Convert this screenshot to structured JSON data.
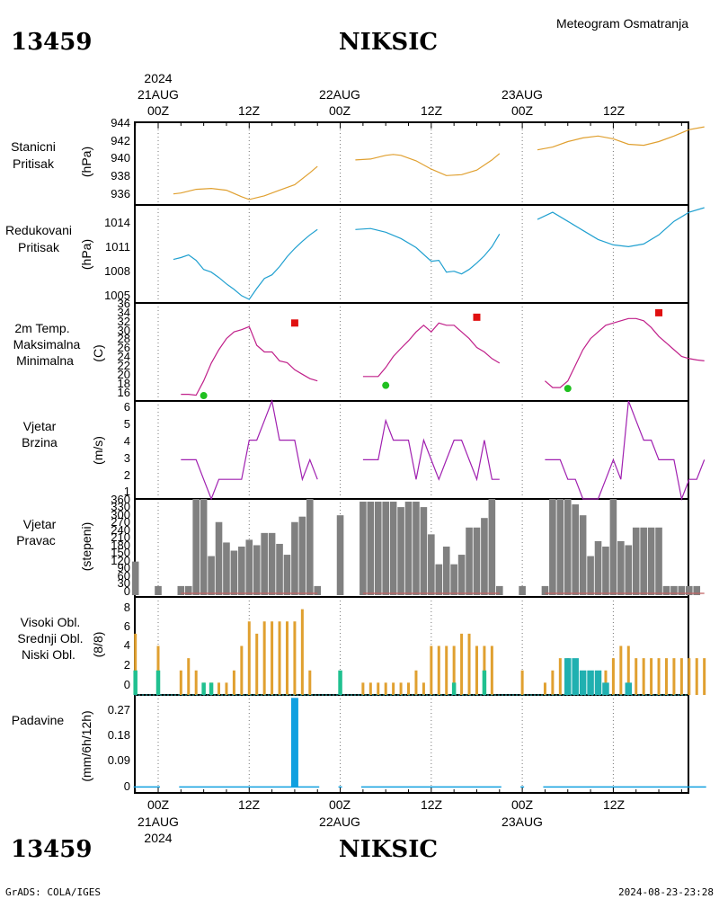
{
  "header": {
    "station_id": "13459",
    "station_name": "NIKSIC",
    "product": "Meteogram Osmatranja"
  },
  "footer": {
    "station_id": "13459",
    "station_name": "NIKSIC",
    "credit": "GrADS: COLA/IGES",
    "timestamp": "2024-08-23-23:28"
  },
  "time_axis": {
    "top_year": "2024",
    "bottom_year": "2024",
    "day_labels": [
      "21AUG",
      "22AUG",
      "23AUG"
    ],
    "hour_labels": [
      "00Z",
      "12Z",
      "00Z",
      "12Z",
      "00Z",
      "12Z"
    ]
  },
  "colors": {
    "pressure": "#e0a030",
    "reduced": "#20a0d0",
    "temp": "#c0208a",
    "tmax": "#e01010",
    "tmin": "#20c020",
    "wind": "#a020b0",
    "winddir": "#808080",
    "high_cloud": "#20b0b0",
    "mid_cloud": "#20c090",
    "low_cloud": "#e0a030",
    "precip": "#10a0e0"
  },
  "panels": {
    "stanicni": {
      "label1": "Stanicni",
      "label2": "Pritisak",
      "unit": "(hPa)",
      "ticks": [
        "944",
        "942",
        "940",
        "938",
        "936"
      ]
    },
    "redukovani": {
      "label1": "Redukovani",
      "label2": "Pritisak",
      "unit": "(hPa)",
      "ticks": [
        "1014",
        "1011",
        "1008",
        "1005"
      ]
    },
    "temp": {
      "label1": "2m Temp.",
      "label2": "Maksimalna",
      "label3": "Minimalna",
      "unit": "(C)",
      "ticks": [
        "36",
        "34",
        "32",
        "30",
        "28",
        "26",
        "24",
        "22",
        "20",
        "18",
        "16"
      ]
    },
    "brzina": {
      "label1": "Vjetar",
      "label2": "Brzina",
      "unit": "(m/s)",
      "ticks": [
        "6",
        "5",
        "4",
        "3",
        "2",
        "1"
      ]
    },
    "pravac": {
      "label1": "Vjetar",
      "label2": "Pravac",
      "unit": "(stepeni)",
      "ticks": [
        "360",
        "300",
        "240",
        "180",
        "120",
        "60",
        "0",
        "330",
        "270",
        "210",
        "150",
        "90",
        "30"
      ]
    },
    "oblaci": {
      "label1": "Visoki Obl.",
      "label2": "Srednji Obl.",
      "label3": "Niski Obl.",
      "unit": "(8/8)",
      "ticks": [
        "8",
        "6",
        "4",
        "2",
        "0"
      ]
    },
    "padavine": {
      "label1": "Padavine",
      "unit": "(mm/6h/12h)",
      "ticks": [
        "0.27",
        "0.18",
        "0.09",
        "0"
      ]
    }
  },
  "chart_data": [
    {
      "type": "line",
      "name": "stanicni_pritisak",
      "title": "Stanicni Pritisak",
      "ylabel": "(hPa)",
      "ylim": [
        935,
        944
      ],
      "x_unit": "hours since 21AUG 00Z",
      "segments": [
        {
          "x": [
            2,
            3,
            5,
            7,
            9,
            11,
            12,
            14,
            16,
            18,
            20,
            21
          ],
          "y": [
            936.2,
            936.3,
            936.7,
            936.8,
            936.6,
            935.9,
            935.6,
            936.0,
            936.6,
            937.2,
            938.5,
            939.2
          ]
        },
        {
          "x": [
            26,
            28,
            30,
            31,
            32,
            34,
            36,
            38,
            40,
            42,
            44,
            45
          ],
          "y": [
            939.9,
            940.0,
            940.4,
            940.5,
            940.4,
            939.8,
            938.9,
            938.2,
            938.3,
            938.8,
            939.9,
            940.6
          ]
        },
        {
          "x": [
            50,
            52,
            54,
            56,
            58,
            60,
            62,
            64,
            66,
            68,
            70,
            72
          ],
          "y": [
            941.0,
            941.3,
            941.9,
            942.3,
            942.5,
            942.2,
            941.6,
            941.5,
            941.9,
            942.5,
            943.2,
            943.5
          ]
        }
      ]
    },
    {
      "type": "line",
      "name": "redukovani_pritisak",
      "title": "Redukovani Pritisak",
      "ylabel": "(hPa)",
      "ylim": [
        1004.8,
        1015.6
      ],
      "x_unit": "hours since 21AUG 00Z",
      "segments": [
        {
          "x": [
            2,
            3,
            4,
            5,
            6,
            7,
            8,
            9,
            10,
            11,
            12,
            13,
            14,
            15,
            16,
            17,
            18,
            19,
            20,
            21
          ],
          "y": [
            1009.6,
            1009.8,
            1010.1,
            1009.5,
            1008.5,
            1008.2,
            1007.6,
            1006.9,
            1006.3,
            1005.6,
            1005.2,
            1006.4,
            1007.5,
            1007.9,
            1008.8,
            1009.9,
            1010.8,
            1011.6,
            1012.3,
            1012.9
          ]
        },
        {
          "x": [
            26,
            28,
            30,
            32,
            34,
            36,
            37,
            38,
            39,
            40,
            41,
            42,
            43,
            44,
            45
          ],
          "y": [
            1012.9,
            1013.0,
            1012.6,
            1011.9,
            1010.9,
            1009.4,
            1009.5,
            1008.2,
            1008.3,
            1008.0,
            1008.5,
            1009.2,
            1010.0,
            1011.0,
            1012.4
          ]
        },
        {
          "x": [
            50,
            52,
            54,
            56,
            58,
            60,
            62,
            64,
            66,
            68,
            70,
            72
          ],
          "y": [
            1014.0,
            1014.8,
            1013.8,
            1012.8,
            1011.8,
            1011.2,
            1011.0,
            1011.3,
            1012.3,
            1013.8,
            1014.8,
            1015.3
          ]
        }
      ]
    },
    {
      "type": "line",
      "name": "temperatura_2m",
      "title": "2m Temp.",
      "ylabel": "(C)",
      "ylim": [
        15,
        37
      ],
      "x_unit": "hours since 21AUG 00Z",
      "segments": [
        {
          "x": [
            3,
            4,
            5,
            6,
            7,
            8,
            9,
            10,
            11,
            12,
            13,
            14,
            15,
            16,
            17,
            18,
            19,
            20,
            21
          ],
          "y": [
            16.5,
            16.5,
            16.3,
            19.5,
            23.5,
            26.5,
            29,
            30.5,
            31,
            31.7,
            27.5,
            26,
            26,
            24,
            23.6,
            22,
            21,
            20,
            19.5
          ]
        },
        {
          "x": [
            27,
            28,
            29,
            30,
            31,
            32,
            33,
            34,
            35,
            36,
            37,
            38,
            39,
            40,
            41,
            42,
            43,
            44,
            45
          ],
          "y": [
            20.5,
            20.5,
            20.5,
            22.5,
            25,
            26.8,
            28.5,
            30.5,
            32,
            30.5,
            32.5,
            32,
            32,
            30.5,
            29,
            27,
            26,
            24.5,
            23.5
          ]
        },
        {
          "x": [
            51,
            52,
            53,
            54,
            55,
            56,
            57,
            58,
            59,
            60,
            61,
            62,
            63,
            64,
            65,
            66,
            67,
            68,
            69,
            70,
            71,
            72
          ],
          "y": [
            19.5,
            18,
            18,
            19.5,
            23,
            26.5,
            29,
            30.5,
            32,
            32.5,
            33,
            33.5,
            33.5,
            33,
            31.5,
            29.5,
            28,
            26.5,
            25,
            24.5,
            24.2,
            24
          ]
        }
      ],
      "tmax": {
        "x": [
          18,
          42,
          66
        ],
        "y": [
          32.5,
          33.8,
          34.8
        ]
      },
      "tmin": {
        "x": [
          6,
          30,
          54
        ],
        "y": [
          16.2,
          18.5,
          17.8
        ]
      }
    },
    {
      "type": "line",
      "name": "vjetar_brzina",
      "title": "Vjetar Brzina",
      "ylabel": "(m/s)",
      "ylim": [
        1,
        6
      ],
      "x_unit": "hours since 21AUG 00Z",
      "segments": [
        {
          "x": [
            3,
            4,
            5,
            6,
            7,
            8,
            9,
            10,
            11,
            12,
            13,
            14,
            15,
            16,
            17,
            18,
            19,
            20,
            21
          ],
          "y": [
            3,
            3,
            3,
            2,
            1,
            2,
            2,
            2,
            2,
            4,
            4,
            5,
            6,
            4,
            4,
            4,
            2,
            3,
            2
          ]
        },
        {
          "x": [
            27,
            28,
            29,
            30,
            31,
            32,
            33,
            34,
            35,
            36,
            37,
            38,
            39,
            40,
            41,
            42,
            43,
            44,
            45
          ],
          "y": [
            3,
            3,
            3,
            5,
            4,
            4,
            4,
            2,
            4,
            3,
            2,
            3,
            4,
            4,
            3,
            2,
            4,
            2,
            2
          ]
        },
        {
          "x": [
            51,
            52,
            53,
            54,
            55,
            56,
            57,
            58,
            59,
            60,
            61,
            62,
            63,
            64,
            65,
            66,
            67,
            68,
            69,
            70,
            71,
            72
          ],
          "y": [
            3,
            3,
            3,
            2,
            2,
            1,
            1,
            1,
            2,
            3,
            2,
            6,
            5,
            4,
            4,
            3,
            3,
            3,
            1,
            2,
            2,
            3
          ]
        }
      ]
    },
    {
      "type": "bar",
      "name": "vjetar_pravac",
      "title": "Vjetar Pravac",
      "ylabel": "(stepeni)",
      "ylim": [
        0,
        360
      ],
      "x_unit": "hours since 21AUG 00Z",
      "x": [
        -3,
        0,
        3,
        4,
        5,
        6,
        7,
        8,
        9,
        10,
        11,
        12,
        13,
        14,
        15,
        16,
        17,
        18,
        19,
        20,
        21,
        24,
        27,
        28,
        29,
        30,
        31,
        32,
        33,
        34,
        35,
        36,
        37,
        38,
        39,
        40,
        41,
        42,
        43,
        44,
        45,
        48,
        51,
        52,
        53,
        54,
        55,
        56,
        57,
        58,
        59,
        60,
        61,
        62,
        63,
        64,
        65,
        66,
        67,
        68,
        69,
        70,
        71
      ],
      "values": [
        130,
        40,
        40,
        40,
        360,
        360,
        150,
        275,
        200,
        170,
        185,
        210,
        190,
        235,
        235,
        195,
        155,
        275,
        295,
        360,
        40,
        300,
        350,
        350,
        350,
        350,
        350,
        330,
        350,
        350,
        330,
        230,
        120,
        185,
        120,
        155,
        255,
        255,
        290,
        360,
        40,
        40,
        40,
        360,
        360,
        360,
        340,
        300,
        150,
        205,
        185,
        360,
        205,
        190,
        255,
        255,
        255,
        255,
        40,
        40,
        40,
        40,
        40
      ]
    },
    {
      "type": "bar",
      "name": "oblaci",
      "title": "Visoki Obl. / Srednji Obl. / Niski Obl.",
      "ylabel": "(8/8)",
      "ylim": [
        0,
        8
      ],
      "x_unit": "hours since 21AUG 00Z",
      "series": [
        {
          "name": "Niski Obl.",
          "x": [
            -3,
            0,
            3,
            4,
            5,
            6,
            7,
            8,
            9,
            10,
            11,
            12,
            13,
            14,
            15,
            16,
            17,
            18,
            19,
            20,
            27,
            28,
            29,
            30,
            31,
            32,
            33,
            34,
            35,
            36,
            37,
            38,
            39,
            40,
            41,
            42,
            43,
            44,
            48,
            51,
            52,
            53,
            54,
            55,
            56,
            57,
            58,
            59,
            60,
            61,
            62,
            63,
            64,
            65,
            66,
            67,
            68,
            69,
            70,
            71,
            72
          ],
          "values": [
            5,
            4,
            2,
            3,
            2,
            1,
            1,
            1,
            1,
            2,
            4,
            6,
            5,
            6,
            6,
            6,
            6,
            6,
            7,
            2,
            1,
            1,
            1,
            1,
            1,
            1,
            1,
            2,
            1,
            4,
            4,
            4,
            4,
            5,
            5,
            4,
            4,
            4,
            2,
            1,
            2,
            3,
            3,
            1,
            1,
            1,
            1,
            2,
            3,
            4,
            4,
            3,
            3,
            3,
            3,
            3,
            3,
            3,
            3,
            3,
            3
          ]
        },
        {
          "name": "Srednji Obl.",
          "x": [
            -3,
            0,
            6,
            7,
            24,
            39,
            43
          ],
          "values": [
            2,
            2,
            1,
            1,
            2,
            1,
            2
          ]
        },
        {
          "name": "Visoki Obl.",
          "x": [
            54,
            55,
            56,
            57,
            58,
            59,
            62
          ],
          "values": [
            3,
            3,
            2,
            2,
            2,
            1,
            1
          ]
        }
      ]
    },
    {
      "type": "bar",
      "name": "padavine",
      "title": "Padavine",
      "ylabel": "(mm/6h/12h)",
      "ylim": [
        -0.02,
        0.31
      ],
      "x_unit": "hours since 21AUG 00Z",
      "x": [
        18
      ],
      "values": [
        0.3
      ]
    }
  ]
}
